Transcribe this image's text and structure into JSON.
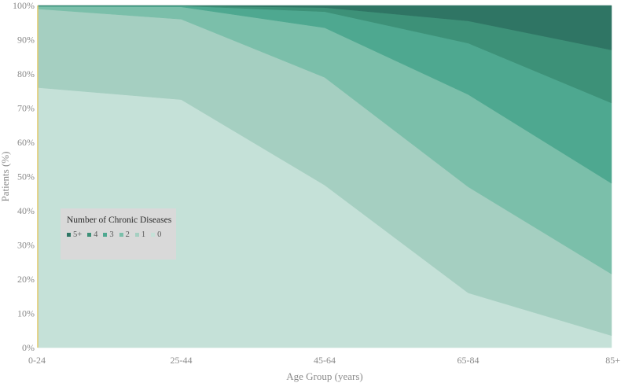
{
  "chart_data": {
    "type": "area",
    "stacked": "percent",
    "title": "",
    "xlabel": "Age Group (years)",
    "ylabel": "Patients (%)",
    "categories": [
      "0-24",
      "25-44",
      "45-64",
      "65-84",
      "85+"
    ],
    "ylim": [
      0,
      100
    ],
    "yticks": [
      "0%",
      "10%",
      "20%",
      "30%",
      "40%",
      "50%",
      "60%",
      "70%",
      "80%",
      "90%",
      "100%"
    ],
    "grid": false,
    "legend": {
      "title": "Number of Chronic Diseases",
      "placement": "left-middle",
      "order": [
        "5+",
        "4",
        "3",
        "2",
        "1",
        "0"
      ]
    },
    "series": [
      {
        "name": "0",
        "color": "#c5e1d8",
        "values": [
          76,
          72.5,
          47.5,
          16,
          3.5
        ]
      },
      {
        "name": "1",
        "color": "#a5cfc1",
        "values": [
          23,
          23.5,
          31.5,
          31,
          18
        ]
      },
      {
        "name": "2",
        "color": "#7bbfaa",
        "values": [
          0.7,
          3.6,
          14.5,
          27,
          26.5
        ]
      },
      {
        "name": "3",
        "color": "#4ea890",
        "values": [
          0.2,
          0.3,
          4.7,
          15,
          23.5
        ]
      },
      {
        "name": "4",
        "color": "#3d9178",
        "values": [
          0.05,
          0.05,
          1.2,
          6.5,
          15.5
        ]
      },
      {
        "name": "5+",
        "color": "#2f7564",
        "values": [
          0.05,
          0.05,
          0.6,
          4.5,
          13
        ]
      }
    ]
  }
}
